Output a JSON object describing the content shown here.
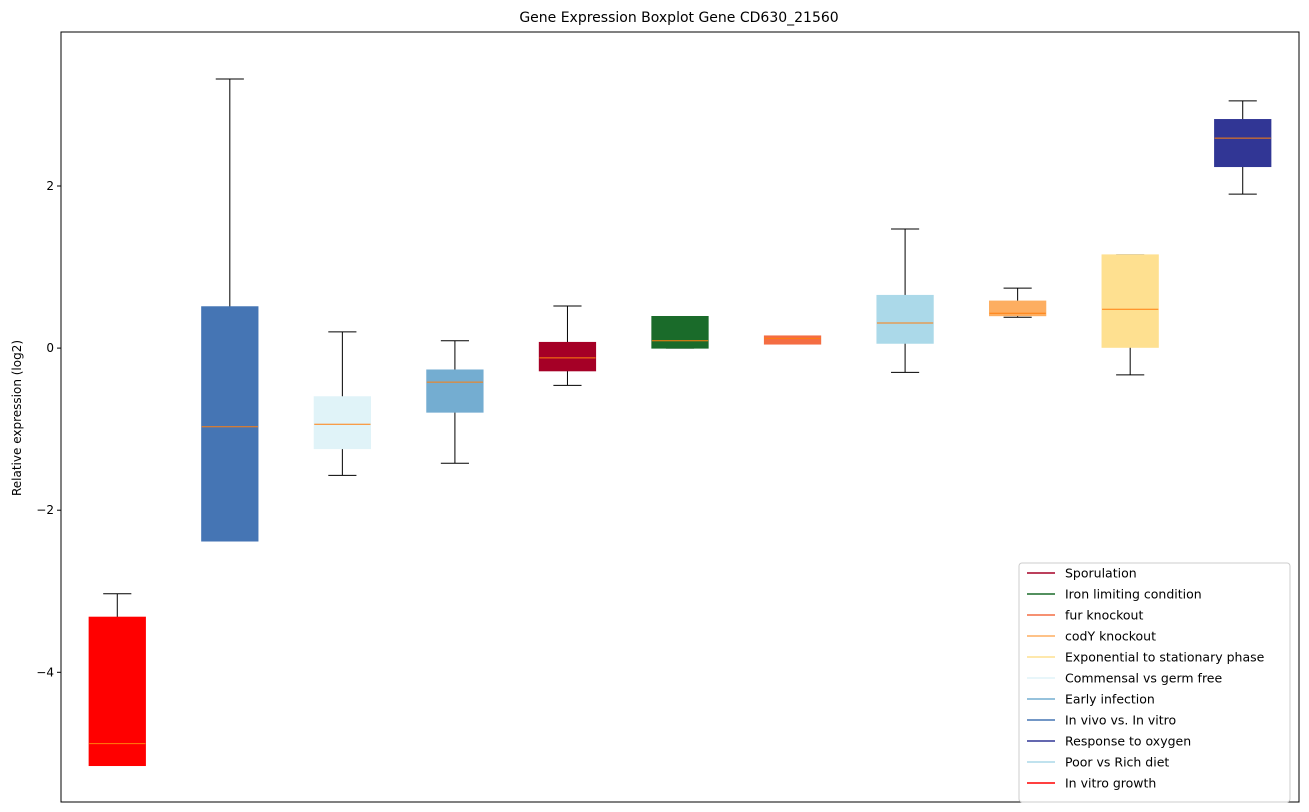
{
  "chart_data": {
    "type": "boxplot",
    "title": "Gene Expression Boxplot Gene CD630_21560",
    "xlabel": "",
    "ylabel": "Relative expression (log2)",
    "ylim": [
      -5.6,
      3.9
    ],
    "yticks": [
      -4,
      -2,
      0,
      2
    ],
    "ytick_labels": [
      "−4",
      "−2",
      "0",
      "2"
    ],
    "grid": false,
    "legend_position": "lower right",
    "boxes": [
      {
        "series": "In vitro growth",
        "color": "#ff0000",
        "whislo": -5.15,
        "q1": -5.15,
        "med": -4.88,
        "q3": -3.32,
        "whishi": -3.03
      },
      {
        "series": "In vivo vs. In vitro",
        "color": "#4575b4",
        "whislo": -2.38,
        "q1": -2.38,
        "med": -0.97,
        "q3": 0.51,
        "whishi": 3.32
      },
      {
        "series": "Commensal vs germ free",
        "color": "#e0f3f8",
        "whislo": -1.57,
        "q1": -1.24,
        "med": -0.94,
        "q3": -0.6,
        "whishi": 0.2
      },
      {
        "series": "Early infection",
        "color": "#74add1",
        "whislo": -1.42,
        "q1": -0.79,
        "med": -0.42,
        "q3": -0.27,
        "whishi": 0.09
      },
      {
        "series": "Sporulation",
        "color": "#a50026",
        "whislo": -0.46,
        "q1": -0.28,
        "med": -0.12,
        "q3": 0.07,
        "whishi": 0.52
      },
      {
        "series": "Iron limiting condition",
        "color": "#1a6b2a",
        "whislo": 0.0,
        "q1": 0.0,
        "med": 0.09,
        "q3": 0.39,
        "whishi": 0.39
      },
      {
        "series": "fur knockout",
        "color": "#f46d43",
        "whislo": 0.05,
        "q1": 0.05,
        "med": 0.12,
        "q3": 0.15,
        "whishi": 0.15
      },
      {
        "series": "Poor vs Rich diet",
        "color": "#abd9e9",
        "whislo": -0.3,
        "q1": 0.06,
        "med": 0.31,
        "q3": 0.65,
        "whishi": 1.47
      },
      {
        "series": "codY knockout",
        "color": "#fdae61",
        "whislo": 0.38,
        "q1": 0.4,
        "med": 0.43,
        "q3": 0.58,
        "whishi": 0.74
      },
      {
        "series": "Exponential to stationary phase",
        "color": "#fee090",
        "whislo": -0.33,
        "q1": 0.01,
        "med": 0.48,
        "q3": 1.15,
        "whishi": 1.15
      },
      {
        "series": "Response to oxygen",
        "color": "#313695",
        "whislo": 1.9,
        "q1": 2.24,
        "med": 2.59,
        "q3": 2.82,
        "whishi": 3.05
      }
    ],
    "median_color": "#ff7f0e",
    "legend": [
      {
        "name": "Sporulation",
        "color": "#a50026"
      },
      {
        "name": "Iron limiting condition",
        "color": "#1a6b2a"
      },
      {
        "name": "fur knockout",
        "color": "#f46d43"
      },
      {
        "name": "codY knockout",
        "color": "#fdae61"
      },
      {
        "name": "Exponential to stationary phase",
        "color": "#fee090"
      },
      {
        "name": "Commensal vs germ free",
        "color": "#e0f3f8"
      },
      {
        "name": "Early infection",
        "color": "#74add1"
      },
      {
        "name": "In vivo vs. In vitro",
        "color": "#4575b4"
      },
      {
        "name": "Response to oxygen",
        "color": "#313695"
      },
      {
        "name": "Poor vs Rich diet",
        "color": "#abd9e9"
      },
      {
        "name": "In vitro growth",
        "color": "#ff0000"
      }
    ]
  }
}
